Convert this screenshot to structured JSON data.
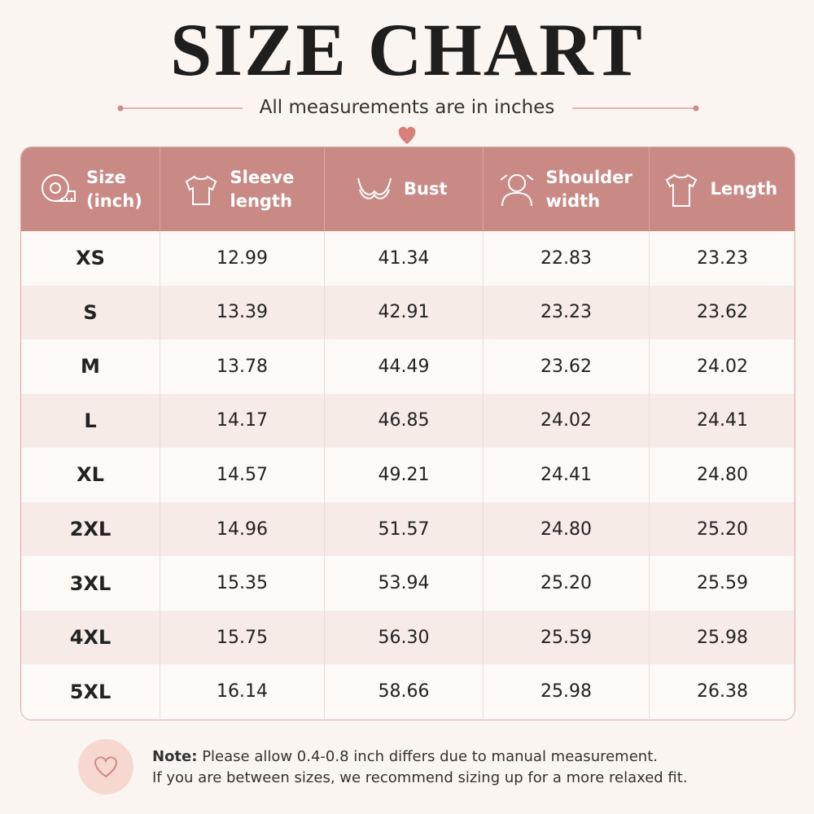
{
  "header": {
    "title": "SIZE CHART",
    "subtitle": "All measurements are in inches"
  },
  "table": {
    "columns": [
      "Size (inch)",
      "Sleeve length",
      "Bust",
      "Shoulder width",
      "Length"
    ],
    "rows": [
      [
        "XS",
        "12.99",
        "41.34",
        "22.83",
        "23.23"
      ],
      [
        "S",
        "13.39",
        "42.91",
        "23.23",
        "23.62"
      ],
      [
        "M",
        "13.78",
        "44.49",
        "23.62",
        "24.02"
      ],
      [
        "L",
        "14.17",
        "46.85",
        "24.02",
        "24.41"
      ],
      [
        "XL",
        "14.57",
        "49.21",
        "24.41",
        "24.80"
      ],
      [
        "2XL",
        "14.96",
        "51.57",
        "24.80",
        "25.20"
      ],
      [
        "3XL",
        "15.35",
        "53.94",
        "25.20",
        "25.59"
      ],
      [
        "4XL",
        "15.75",
        "56.30",
        "25.59",
        "25.98"
      ],
      [
        "5XL",
        "16.14",
        "58.66",
        "25.98",
        "26.38"
      ]
    ]
  },
  "note": {
    "label": "Note:",
    "lines": [
      "Please allow 0.4-0.8 inch differs due to manual measurement.",
      "If you are between sizes, we recommend sizing up for a more relaxed fit."
    ]
  }
}
